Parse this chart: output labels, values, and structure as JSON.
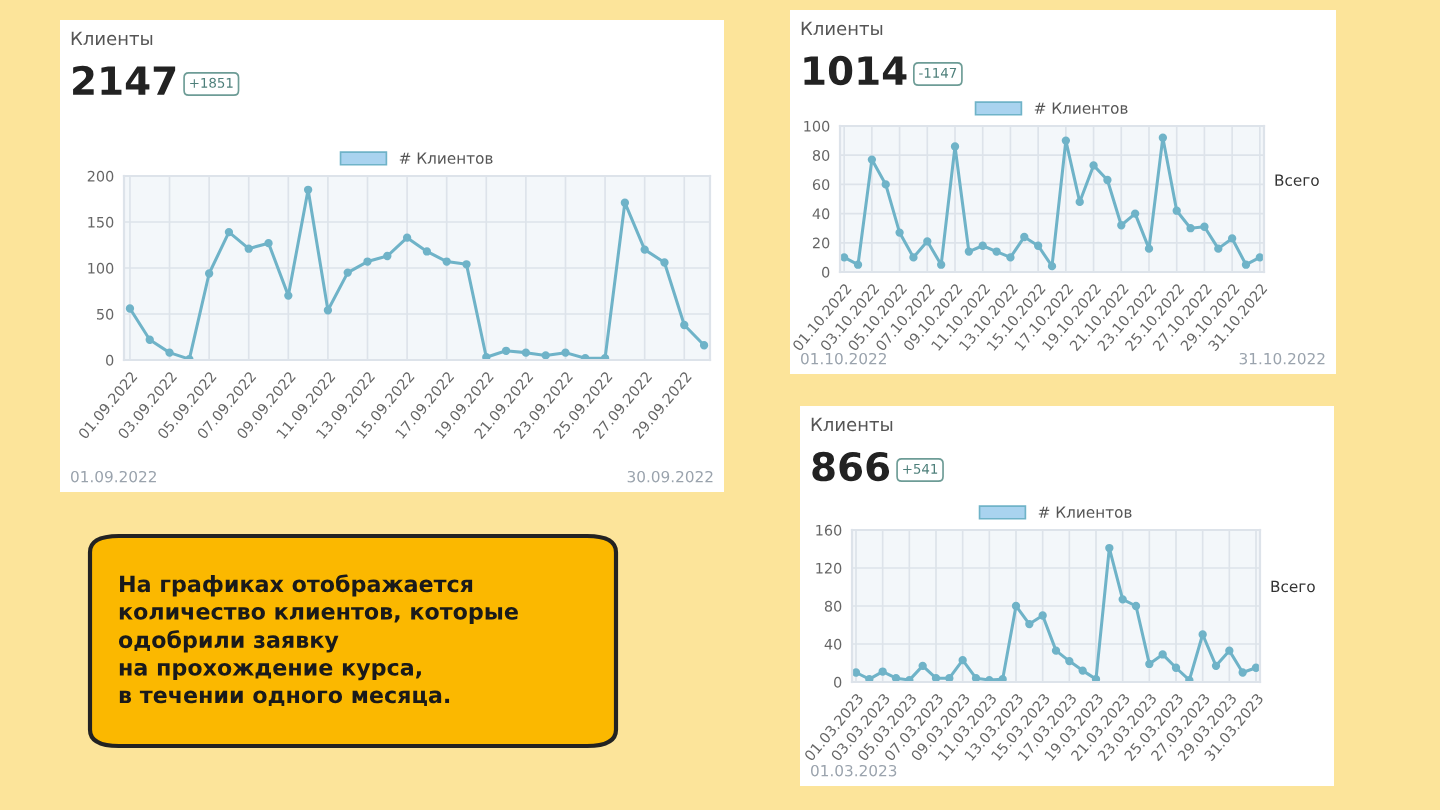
{
  "chart_data": [
    {
      "type": "line",
      "title": "Клиенты",
      "subtitle": "2147",
      "annotations": [
        "+1851",
        "01.09.2022",
        "30.09.2022"
      ],
      "categories": [
        "01.09.2022",
        null,
        "03.09.2022",
        null,
        "05.09.2022",
        null,
        "07.09.2022",
        null,
        "09.09.2022",
        null,
        "11.09.2022",
        null,
        "13.09.2022",
        null,
        "15.09.2022",
        null,
        "17.09.2022",
        null,
        "19.09.2022",
        null,
        "21.09.2022",
        null,
        "23.09.2022",
        null,
        "25.09.2022",
        null,
        "27.09.2022",
        null,
        "29.09.2022",
        null
      ],
      "series": [
        {
          "name": "# Клиентов",
          "color": "#6fb3c8",
          "values": [
            56,
            22,
            8,
            1,
            94,
            139,
            121,
            127,
            70,
            185,
            54,
            95,
            107,
            113,
            133,
            118,
            107,
            104,
            3,
            10,
            8,
            5,
            8,
            2,
            2,
            171,
            120,
            106,
            38,
            16
          ]
        }
      ],
      "ylim": [
        0,
        200
      ],
      "yticks": [
        0,
        50,
        100,
        150,
        200
      ],
      "grid": true,
      "legend": "top",
      "marker": "circle"
    },
    {
      "type": "line",
      "title": "Клиенты",
      "subtitle": "1014",
      "annotations": [
        "-1147",
        "01.10.2022",
        "31.10.2022",
        "Всего"
      ],
      "categories": [
        "01.10.2022",
        null,
        "03.10.2022",
        null,
        "05.10.2022",
        null,
        "07.10.2022",
        null,
        "09.10.2022",
        null,
        "11.10.2022",
        null,
        "13.10.2022",
        null,
        "15.10.2022",
        null,
        "17.10.2022",
        null,
        "19.10.2022",
        null,
        "21.10.2022",
        null,
        "23.10.2022",
        null,
        "25.10.2022",
        null,
        "27.10.2022",
        null,
        "29.10.2022",
        null,
        "31.10.2022"
      ],
      "series": [
        {
          "name": "# Клиентов",
          "color": "#6fb3c8",
          "values": [
            10,
            5,
            77,
            60,
            27,
            10,
            21,
            5,
            86,
            14,
            18,
            14,
            10,
            24,
            18,
            4,
            90,
            48,
            73,
            63,
            32,
            40,
            16,
            92,
            42,
            30,
            31,
            16,
            23,
            5,
            10
          ]
        }
      ],
      "ylim": [
        0,
        100
      ],
      "yticks": [
        0,
        20,
        40,
        60,
        80,
        100
      ],
      "grid": true,
      "legend": "top",
      "marker": "circle"
    },
    {
      "type": "line",
      "title": "Клиенты",
      "subtitle": "866",
      "annotations": [
        "+541",
        "01.03.2023",
        "Всего"
      ],
      "categories": [
        "01.03.2023",
        null,
        "03.03.2023",
        null,
        "05.03.2023",
        null,
        "07.03.2023",
        null,
        "09.03.2023",
        null,
        "11.03.2023",
        null,
        "13.03.2023",
        null,
        "15.03.2023",
        null,
        "17.03.2023",
        null,
        "19.03.2023",
        null,
        "21.03.2023",
        null,
        "23.03.2023",
        null,
        "25.03.2023",
        null,
        "27.03.2023",
        null,
        "29.03.2023",
        null,
        "31.03.2023"
      ],
      "series": [
        {
          "name": "# Клиентов",
          "color": "#6fb3c8",
          "values": [
            10,
            3,
            11,
            4,
            2,
            17,
            4,
            4,
            23,
            4,
            2,
            3,
            80,
            61,
            70,
            33,
            22,
            12,
            3,
            141,
            87,
            80,
            19,
            29,
            15,
            2,
            50,
            17,
            33,
            10,
            15
          ]
        }
      ],
      "ylim": [
        0,
        160
      ],
      "yticks": [
        0,
        40,
        80,
        120,
        160
      ],
      "grid": true,
      "legend": "top",
      "marker": "circle"
    },
    {
      "type": "other",
      "annotations": [
        "На графиках отображается\nколичество клиентов, которые\nодобрили заявку\nна прохождение курса,\nв течении одного месяца."
      ]
    }
  ]
}
